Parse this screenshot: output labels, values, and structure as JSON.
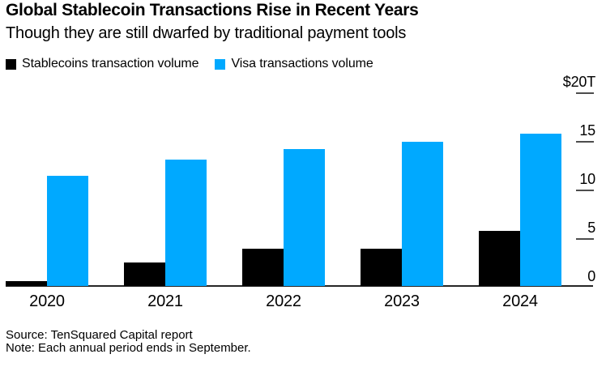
{
  "header": {
    "title": "Global Stablecoin Transactions Rise in Recent Years",
    "subtitle": "Though they are still dwarfed by traditional payment tools"
  },
  "legend": [
    {
      "label": "Stablecoins transaction volume",
      "color": "#000000"
    },
    {
      "label": "Visa transactions volume",
      "color": "#00a9ff"
    }
  ],
  "chart_data": {
    "type": "bar",
    "title": "Global Stablecoin Transactions Rise in Recent Years",
    "subtitle": "Though they are still dwarfed by traditional payment tools",
    "unit": "trillion USD",
    "categories": [
      "2020",
      "2021",
      "2022",
      "2023",
      "2024"
    ],
    "series": [
      {
        "name": "Stablecoins transaction volume",
        "color": "#000000",
        "values": [
          0.5,
          2.4,
          3.8,
          3.8,
          5.7
        ]
      },
      {
        "name": "Visa transactions volume",
        "color": "#00a9ff",
        "values": [
          11.3,
          13.0,
          14.1,
          14.8,
          15.7
        ]
      }
    ],
    "y_axis": {
      "position": "right",
      "range": [
        0,
        20
      ],
      "ticks": [
        20,
        15,
        10,
        5,
        0
      ],
      "tick_labels": [
        "$20T",
        "15",
        "10",
        "5",
        "0"
      ]
    },
    "grid": false,
    "legend_position": "top-left"
  },
  "footer": {
    "source": "Source: TenSquared Capital report",
    "note": "Note: Each annual period ends in September."
  }
}
